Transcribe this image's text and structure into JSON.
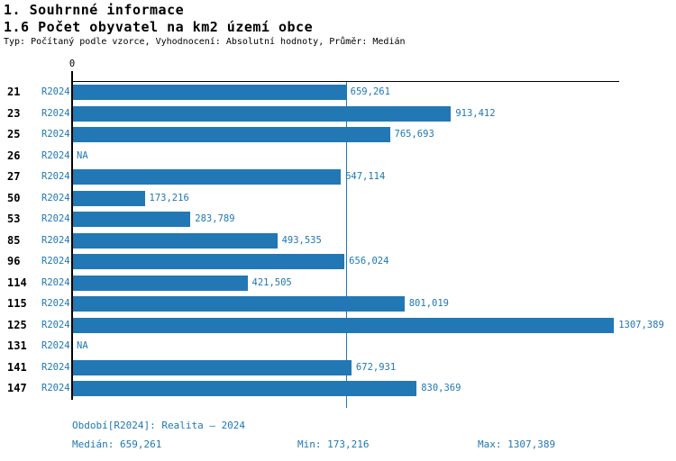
{
  "header": {
    "title_line1": "1. Souhrnné informace",
    "title_line2": "1.6 Počet obyvatel na km2 území obce",
    "subtitle": "Typ: Počítaný podle vzorce, Vyhodnocení: Absolutní hodnoty, Průměr: Medián"
  },
  "chart_data": {
    "type": "bar",
    "orientation": "horizontal",
    "title": "1.6 Počet obyvatel na km2 území obce",
    "categories": [
      "21",
      "23",
      "25",
      "26",
      "27",
      "50",
      "53",
      "85",
      "96",
      "114",
      "115",
      "125",
      "131",
      "141",
      "147"
    ],
    "series": [
      {
        "name": "R2024",
        "values": [
          659.261,
          913.412,
          765.693,
          null,
          647.114,
          173.216,
          283.789,
          493.535,
          656.024,
          421.505,
          801.019,
          1307.389,
          null,
          672.931,
          830.369
        ]
      }
    ],
    "value_labels": [
      "659,261",
      "913,412",
      "765,693",
      "NA",
      "647,114",
      "173,216",
      "283,789",
      "493,535",
      "656,024",
      "421,505",
      "801,019",
      "1307,389",
      "NA",
      "672,931",
      "830,369"
    ],
    "na_label": "NA",
    "period_label": "R2024",
    "x_zero_label": "0",
    "xlim": [
      0,
      1320
    ],
    "median": 659.261,
    "grid": false,
    "legend_position": "none"
  },
  "style": {
    "bar_color": "#2278B5",
    "text_blue": "#1F77B4",
    "axis_color": "#000000"
  },
  "footer": {
    "period_line": "Období[R2024]: Realita – 2024",
    "median_label": "Medián: 659,261",
    "min_label": "Min: 173,216",
    "max_label": "Max: 1307,389"
  }
}
